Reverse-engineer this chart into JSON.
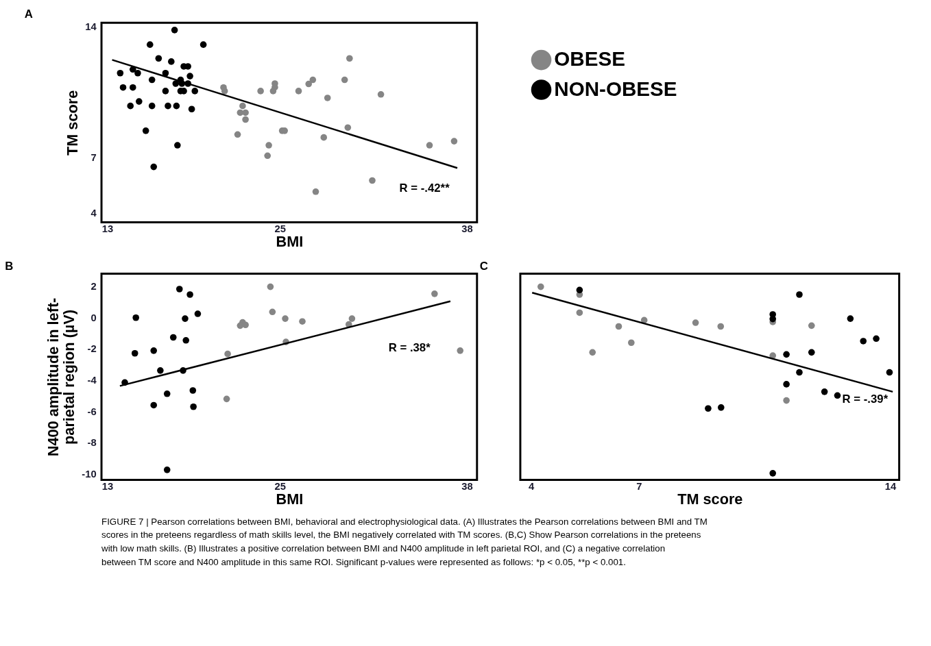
{
  "chart_data": [
    {
      "type": "scatter",
      "title": "A",
      "xlabel": "BMI",
      "ylabel": "TM score",
      "xlim": [
        12.6,
        38.7
      ],
      "ylim": [
        3.5,
        14.2
      ],
      "xticks": [
        13,
        25,
        38
      ],
      "yticks": [
        4,
        7,
        14
      ],
      "legend": "right",
      "grid": false,
      "series": [
        {
          "name": "OBESE",
          "color": "#858585",
          "marker": "circle",
          "x": [
            29.84,
            21.08,
            21.16,
            23.66,
            24.65,
            24.65,
            24.53,
            26.3,
            27.29,
            27.0,
            29.5,
            28.31,
            32.02,
            22.41,
            22.24,
            22.61,
            22.61,
            22.06,
            25.16,
            25.33,
            29.72,
            28.05,
            24.23,
            24.14,
            35.4,
            37.11,
            31.42,
            27.49
          ],
          "values": [
            12.29,
            10.73,
            10.54,
            10.54,
            10.94,
            10.74,
            10.54,
            10.54,
            11.14,
            10.92,
            11.14,
            10.17,
            10.36,
            9.74,
            9.38,
            9.38,
            9.01,
            8.21,
            8.41,
            8.41,
            8.58,
            8.05,
            7.63,
            7.07,
            7.63,
            7.85,
            5.74,
            5.14
          ]
        },
        {
          "name": "NON-OBESE",
          "color": "#000000",
          "marker": "circle",
          "x": [
            17.68,
            15.97,
            19.68,
            16.57,
            17.45,
            18.32,
            18.61,
            13.9,
            14.78,
            15.12,
            17.05,
            16.11,
            18.75,
            18.1,
            17.76,
            18.19,
            18.61,
            14.1,
            14.78,
            17.05,
            18.1,
            18.32,
            19.09,
            15.21,
            14.61,
            16.11,
            17.22,
            17.81,
            18.87,
            15.68,
            17.88,
            16.23
          ],
          "values": [
            13.81,
            13.03,
            13.03,
            12.29,
            12.12,
            11.86,
            11.86,
            11.5,
            11.7,
            11.5,
            11.5,
            11.14,
            11.34,
            11.14,
            10.94,
            10.94,
            10.94,
            10.73,
            10.73,
            10.54,
            10.54,
            10.54,
            10.54,
            9.98,
            9.74,
            9.74,
            9.74,
            9.74,
            9.57,
            8.41,
            7.63,
            6.47
          ]
        },
        {
          "type": "line",
          "color": "#000000",
          "x": [
            13.34,
            37.33
          ],
          "values": [
            12.21,
            6.41
          ]
        }
      ],
      "annotations": [
        "R = -.42**",
        "FIGURE 7 | Pearson correlations between BMI, behavioral and electrophysiological data. (A) Illustrates the Pearson correlations between BMI and TM scores in the preteens regardless of math skills level, the BMI negatively correlated with TM scores. (B,C) Show Pearson correlations in the preteens with low math skills. (B) Illustrates a positive correlation between BMI and N400 amplitude in left parietal ROI, and (C) a negative correlation between TM score and N400 amplitude in this same ROI. Significant p-values were represented as follows: *p < 0.05, **p < 0.001."
      ]
    },
    {
      "type": "scatter",
      "title": "B",
      "xlabel": "BMI",
      "ylabel": "N400 amplitude in left-parietal region (µV)",
      "xlim": [
        12.6,
        38.7
      ],
      "ylim": [
        -10.4,
        2.8
      ],
      "xticks": [
        13,
        25,
        38
      ],
      "yticks": [
        2,
        0,
        -2,
        -4,
        -6,
        -8,
        -10
      ],
      "grid": false,
      "series": [
        {
          "color": "#858585",
          "marker": "circle",
          "x": [
            24.34,
            35.75,
            24.48,
            25.37,
            26.56,
            30.01,
            29.79,
            22.41,
            22.24,
            22.61,
            25.42,
            21.37,
            37.53,
            21.3
          ],
          "values": [
            1.96,
            1.51,
            0.35,
            -0.08,
            -0.26,
            -0.08,
            -0.45,
            -0.32,
            -0.53,
            -0.48,
            -1.57,
            -2.34,
            -2.13,
            -5.22
          ]
        },
        {
          "color": "#000000",
          "marker": "circle",
          "x": [
            18.02,
            18.75,
            14.99,
            18.41,
            19.29,
            17.59,
            18.47,
            14.92,
            16.23,
            16.69,
            18.27,
            14.22,
            17.16,
            18.95,
            16.23,
            18.99,
            17.16
          ],
          "values": [
            1.81,
            1.46,
            -0.02,
            -0.08,
            0.23,
            -1.28,
            -1.47,
            -2.3,
            -2.13,
            -3.4,
            -3.4,
            -4.17,
            -4.89,
            -4.68,
            -5.62,
            -5.72,
            -9.76
          ]
        },
        {
          "type": "line",
          "color": "#000000",
          "x": [
            13.88,
            36.85
          ],
          "values": [
            -4.39,
            1.03
          ]
        }
      ],
      "annotations": [
        "R = .38*"
      ]
    },
    {
      "type": "scatter",
      "title": "C",
      "xlabel": "TM score",
      "xlim": [
        3.7,
        14.25
      ],
      "ylim": [
        -10.4,
        2.8
      ],
      "xticks": [
        4,
        7,
        14
      ],
      "yticks": [
        2,
        0,
        -2,
        -4,
        -6,
        -8,
        -10
      ],
      "tick_labels": "x",
      "grid": false,
      "series": [
        {
          "color": "#858585",
          "marker": "circle",
          "x": [
            4.27,
            5.35,
            5.35,
            5.71,
            6.44,
            6.79,
            7.15,
            8.58,
            9.28,
            10.73,
            10.73,
            11.81,
            11.11
          ],
          "values": [
            1.96,
            1.46,
            0.3,
            -2.24,
            -0.58,
            -1.62,
            -0.18,
            -0.34,
            -0.58,
            -0.29,
            -2.45,
            -0.53,
            -5.32
          ]
        },
        {
          "color": "#000000",
          "marker": "circle",
          "x": [
            5.35,
            11.47,
            10.73,
            10.73,
            12.89,
            13.25,
            13.61,
            11.11,
            11.81,
            11.47,
            13.98,
            11.11,
            12.17,
            12.53,
            8.93,
            9.29,
            10.73
          ],
          "values": [
            1.75,
            1.46,
            0.19,
            -0.1,
            -0.08,
            -1.52,
            -1.36,
            -2.37,
            -2.24,
            -3.52,
            -3.52,
            -4.28,
            -4.76,
            -5.0,
            -5.83,
            -5.77,
            -9.98
          ]
        },
        {
          "type": "line",
          "color": "#000000",
          "x": [
            4.03,
            14.07
          ],
          "values": [
            1.58,
            -4.76
          ]
        }
      ],
      "annotations": [
        "R = -.39*"
      ]
    }
  ]
}
